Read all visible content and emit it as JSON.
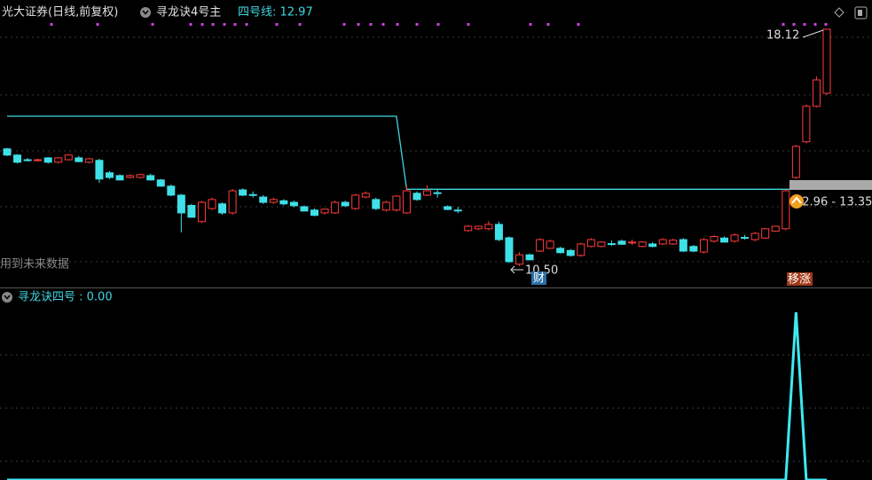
{
  "chart_data": [
    {
      "type": "candlestick",
      "title": "光大证券(日线,前复权)",
      "indicator": "寻龙诀4号主",
      "line_label": "四号线: 12.97",
      "ylim": [
        9.81,
        19.06
      ],
      "up_color": "#ff3b3b",
      "down_color": "#3fe0e8",
      "candles": [
        [
          14.27,
          14.3,
          14.04,
          14.07
        ],
        [
          14.07,
          14.1,
          13.8,
          13.84
        ],
        [
          13.92,
          13.98,
          13.86,
          13.9
        ],
        [
          13.9,
          13.95,
          13.86,
          13.92
        ],
        [
          13.98,
          14.01,
          13.8,
          13.84
        ],
        [
          13.84,
          14.01,
          13.8,
          13.98
        ],
        [
          13.92,
          14.1,
          13.9,
          14.07
        ],
        [
          13.98,
          14.04,
          13.84,
          13.86
        ],
        [
          13.84,
          13.98,
          13.8,
          13.95
        ],
        [
          13.9,
          13.95,
          13.18,
          13.3
        ],
        [
          13.5,
          13.55,
          13.3,
          13.35
        ],
        [
          13.41,
          13.45,
          13.25,
          13.27
        ],
        [
          13.35,
          13.45,
          13.32,
          13.41
        ],
        [
          13.35,
          13.47,
          13.32,
          13.44
        ],
        [
          13.41,
          13.47,
          13.25,
          13.27
        ],
        [
          13.27,
          13.3,
          13.05,
          13.07
        ],
        [
          13.07,
          13.12,
          12.75,
          12.78
        ],
        [
          12.78,
          12.82,
          11.58,
          12.21
        ],
        [
          12.45,
          12.5,
          12.05,
          12.07
        ],
        [
          11.93,
          12.6,
          11.88,
          12.55
        ],
        [
          12.35,
          12.7,
          12.3,
          12.64
        ],
        [
          12.5,
          12.55,
          12.15,
          12.21
        ],
        [
          12.21,
          12.98,
          12.15,
          12.92
        ],
        [
          12.95,
          13.0,
          12.75,
          12.78
        ],
        [
          12.8,
          12.9,
          12.7,
          12.78
        ],
        [
          12.72,
          12.78,
          12.5,
          12.55
        ],
        [
          12.55,
          12.7,
          12.5,
          12.64
        ],
        [
          12.6,
          12.65,
          12.45,
          12.5
        ],
        [
          12.55,
          12.6,
          12.4,
          12.44
        ],
        [
          12.41,
          12.45,
          12.25,
          12.27
        ],
        [
          12.3,
          12.35,
          12.1,
          12.13
        ],
        [
          12.21,
          12.35,
          12.15,
          12.33
        ],
        [
          12.21,
          12.6,
          12.18,
          12.55
        ],
        [
          12.55,
          12.6,
          12.4,
          12.44
        ],
        [
          12.35,
          12.82,
          12.3,
          12.78
        ],
        [
          12.72,
          12.9,
          12.68,
          12.84
        ],
        [
          12.64,
          12.7,
          12.3,
          12.35
        ],
        [
          12.3,
          12.6,
          12.25,
          12.55
        ],
        [
          12.3,
          12.78,
          12.25,
          12.75
        ],
        [
          12.21,
          13.1,
          12.18,
          12.92
        ],
        [
          12.84,
          12.9,
          12.6,
          12.64
        ],
        [
          12.78,
          13.1,
          12.75,
          12.92
        ],
        [
          12.86,
          12.95,
          12.7,
          12.84
        ],
        [
          12.41,
          12.45,
          12.3,
          12.32
        ],
        [
          12.3,
          12.4,
          12.2,
          12.28
        ],
        [
          11.64,
          11.82,
          11.6,
          11.78
        ],
        [
          11.7,
          11.8,
          11.65,
          11.78
        ],
        [
          11.7,
          11.95,
          11.65,
          11.84
        ],
        [
          11.84,
          11.93,
          11.3,
          11.35
        ],
        [
          11.41,
          11.45,
          10.6,
          10.64
        ],
        [
          10.56,
          10.95,
          10.5,
          10.86
        ],
        [
          10.86,
          10.9,
          10.68,
          10.7
        ],
        [
          10.98,
          11.4,
          10.95,
          11.35
        ],
        [
          11.07,
          11.35,
          11.05,
          11.3
        ],
        [
          11.07,
          11.12,
          10.9,
          10.93
        ],
        [
          11.0,
          11.05,
          10.8,
          10.84
        ],
        [
          10.84,
          11.25,
          10.8,
          11.21
        ],
        [
          11.13,
          11.4,
          11.1,
          11.35
        ],
        [
          11.13,
          11.3,
          11.1,
          11.27
        ],
        [
          11.22,
          11.32,
          11.15,
          11.21
        ],
        [
          11.3,
          11.35,
          11.18,
          11.2
        ],
        [
          11.27,
          11.35,
          11.18,
          11.27
        ],
        [
          11.13,
          11.3,
          11.1,
          11.27
        ],
        [
          11.21,
          11.27,
          11.1,
          11.13
        ],
        [
          11.21,
          11.4,
          11.18,
          11.35
        ],
        [
          11.21,
          11.38,
          11.18,
          11.33
        ],
        [
          11.35,
          11.4,
          10.95,
          10.98
        ],
        [
          11.13,
          11.18,
          10.95,
          10.98
        ],
        [
          10.95,
          11.4,
          10.9,
          11.35
        ],
        [
          11.3,
          11.5,
          11.25,
          11.45
        ],
        [
          11.4,
          11.45,
          11.25,
          11.27
        ],
        [
          11.3,
          11.55,
          11.25,
          11.5
        ],
        [
          11.42,
          11.5,
          11.35,
          11.4
        ],
        [
          11.35,
          11.6,
          11.3,
          11.55
        ],
        [
          11.4,
          11.72,
          11.38,
          11.7
        ],
        [
          11.62,
          11.8,
          11.6,
          11.78
        ],
        [
          11.7,
          12.96,
          11.65,
          12.92
        ],
        [
          13.35,
          14.4,
          13.3,
          14.35
        ],
        [
          14.5,
          15.7,
          14.45,
          15.64
        ],
        [
          15.64,
          16.6,
          15.6,
          16.49
        ],
        [
          16.06,
          18.12,
          16.0,
          18.12
        ]
      ],
      "series": [
        {
          "name": "四号线",
          "color": "#3fd6e0",
          "values": [
            15.32,
            15.32,
            15.32,
            15.32,
            15.32,
            15.32,
            15.32,
            15.32,
            15.32,
            15.32,
            15.32,
            15.32,
            15.32,
            15.32,
            15.32,
            15.32,
            15.32,
            15.32,
            15.32,
            15.32,
            15.32,
            15.32,
            15.32,
            15.32,
            15.32,
            15.32,
            15.32,
            15.32,
            15.32,
            15.32,
            15.32,
            15.32,
            15.32,
            15.32,
            15.32,
            15.32,
            15.32,
            15.32,
            15.32,
            12.97,
            12.97,
            12.97,
            12.97,
            12.97,
            12.97,
            12.97,
            12.97,
            12.97,
            12.97,
            12.97,
            12.97,
            12.97,
            12.97,
            12.97,
            12.97,
            12.97,
            12.97,
            12.97,
            12.97,
            12.97,
            12.97,
            12.97,
            12.97,
            12.97,
            12.97,
            12.97,
            12.97,
            12.97,
            12.97,
            12.97,
            12.97,
            12.97,
            12.97,
            12.97,
            12.97,
            12.97,
            12.97,
            12.97,
            12.97,
            12.97,
            12.97
          ]
        }
      ],
      "annotations": {
        "high": "18.12",
        "low": "10.50",
        "range": "12.96 - 13.35",
        "note": "用到未来数据",
        "badge_low": "财",
        "badge_signal": "移涨"
      }
    },
    {
      "type": "line",
      "title": "寻龙诀四号 : 0.00",
      "ylim": [
        0,
        1
      ],
      "series": [
        {
          "name": "寻龙诀四号",
          "color": "#3fe8f0",
          "values": [
            0,
            0,
            0,
            0,
            0,
            0,
            0,
            0,
            0,
            0,
            0,
            0,
            0,
            0,
            0,
            0,
            0,
            0,
            0,
            0,
            0,
            0,
            0,
            0,
            0,
            0,
            0,
            0,
            0,
            0,
            0,
            0,
            0,
            0,
            0,
            0,
            0,
            0,
            0,
            0,
            0,
            0,
            0,
            0,
            0,
            0,
            0,
            0,
            0,
            0,
            0,
            0,
            0,
            0,
            0,
            0,
            0,
            0,
            0,
            0,
            0,
            0,
            0,
            0,
            0,
            0,
            0,
            0,
            0,
            0,
            0,
            0,
            0,
            0,
            0,
            0,
            0,
            1,
            0,
            0,
            0
          ]
        }
      ]
    }
  ]
}
